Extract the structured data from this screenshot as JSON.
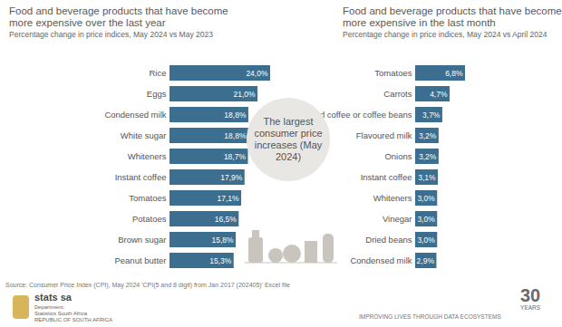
{
  "chart_data": [
    {
      "type": "bar",
      "orientation": "horizontal",
      "title": "Food and beverage products that have become more expensive over the last year",
      "subtitle": "Percentage change in price indices, May 2024 vs May 2023",
      "categories": [
        "Rice",
        "Eggs",
        "Condensed milk",
        "White sugar",
        "Whiteners",
        "Instant coffee",
        "Tomatoes",
        "Potatoes",
        "Brown sugar",
        "Peanut butter"
      ],
      "values": [
        24.0,
        21.0,
        18.8,
        18.8,
        18.7,
        17.9,
        17.1,
        16.5,
        15.8,
        15.3
      ],
      "value_labels": [
        "24,0%",
        "21,0%",
        "18,8%",
        "18,8%",
        "18,7%",
        "17,9%",
        "17,1%",
        "16,5%",
        "15,8%",
        "15,3%"
      ],
      "color": "#3c6e8f",
      "data_labels": true,
      "tick_labels": "y"
    },
    {
      "type": "bar",
      "orientation": "horizontal",
      "title": "Food and beverage products that have become more expensive in the last month",
      "subtitle": "Percentage change in price indices, May 2024 vs April 2024",
      "categories": [
        "Tomatoes",
        "Carrots",
        "Ground coffee or coffee beans",
        "Flavoured milk",
        "Onions",
        "Instant coffee",
        "Whiteners",
        "Vinegar",
        "Dried beans",
        "Condensed milk"
      ],
      "values": [
        6.8,
        4.7,
        3.7,
        3.2,
        3.2,
        3.1,
        3.0,
        3.0,
        3.0,
        2.9
      ],
      "value_labels": [
        "6,8%",
        "4,7%",
        "3,7%",
        "3,2%",
        "3,2%",
        "3,1%",
        "3,0%",
        "3,0%",
        "3,0%",
        "2,9%"
      ],
      "color": "#3c6e8f",
      "data_labels": true,
      "tick_labels": "y"
    }
  ],
  "annotation": "The largest consumer price increases (May 2024)",
  "source": "Source: Consumer Price Index (CPI), May 2024",
  "source_note": "'CPI(5 and 8 digit) from Jan 2017 (202405)' Excel file",
  "logo": "stats sa",
  "department": [
    "Department:",
    "Statistics South Africa",
    "REPUBLIC OF SOUTH AFRICA"
  ],
  "tagline": "IMPROVING LIVES THROUGH DATA ECOSYSTEMS",
  "anniversary": {
    "number": "30",
    "label": "YEARS"
  }
}
